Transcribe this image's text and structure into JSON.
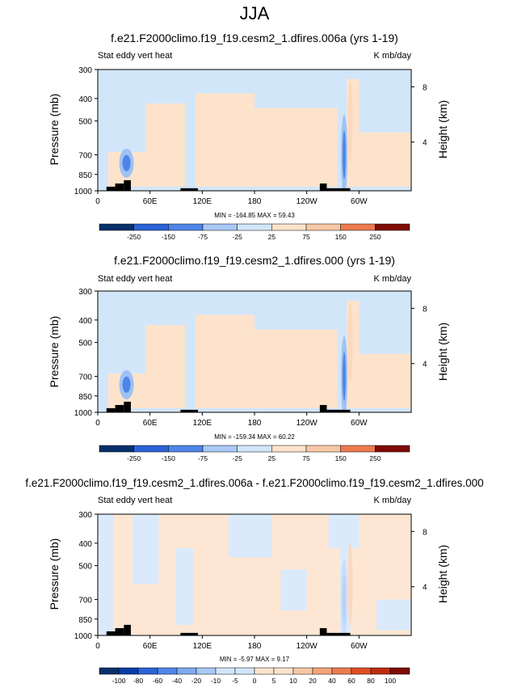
{
  "page_title": "JJA",
  "chart_data": [
    {
      "type": "heatmap",
      "title": "f.e21.F2000climo.f19_f19.cesm2_1.dfires.006a (yrs 1-19)",
      "left_label": "Stat eddy vert heat",
      "right_label": "K mb/day",
      "ylabel": "Pressure (mb)",
      "ylabel_right": "Height (km)",
      "y_ticks": [
        "300",
        "400",
        "500",
        "700",
        "850",
        "1000"
      ],
      "y_ticks_right": [
        "8",
        "4"
      ],
      "x_ticks": [
        "0",
        "60E",
        "120E",
        "180",
        "120W",
        "60W"
      ],
      "xlim": [
        0,
        360
      ],
      "ylim": [
        1000,
        300
      ],
      "y_scale": "log",
      "stats_text": "MIN = -164.85   MAX =  59.43",
      "colorbar_labels": [
        "-250",
        "-150",
        "-75",
        "-25",
        "25",
        "75",
        "150",
        "250"
      ],
      "features": [
        {
          "kind": "min",
          "lon": 33,
          "p": 760,
          "value": -164.85
        },
        {
          "kind": "min",
          "lon": 283,
          "p": 700,
          "value": -120
        },
        {
          "kind": "max",
          "lon": 290,
          "p": 500,
          "value": 59.43
        }
      ]
    },
    {
      "type": "heatmap",
      "title": "f.e21.F2000climo.f19_f19.cesm2_1.dfires.000 (yrs 1-19)",
      "left_label": "Stat eddy vert heat",
      "right_label": "K mb/day",
      "ylabel": "Pressure (mb)",
      "ylabel_right": "Height (km)",
      "y_ticks": [
        "300",
        "400",
        "500",
        "700",
        "850",
        "1000"
      ],
      "y_ticks_right": [
        "8",
        "4"
      ],
      "x_ticks": [
        "0",
        "60E",
        "120E",
        "180",
        "120W",
        "60W"
      ],
      "xlim": [
        0,
        360
      ],
      "ylim": [
        1000,
        300
      ],
      "y_scale": "log",
      "stats_text": "MIN = -159.34   MAX =  60.22",
      "colorbar_labels": [
        "-250",
        "-150",
        "-75",
        "-25",
        "25",
        "75",
        "150",
        "250"
      ],
      "features": [
        {
          "kind": "min",
          "lon": 33,
          "p": 760,
          "value": -159.34
        },
        {
          "kind": "min",
          "lon": 283,
          "p": 700,
          "value": -120
        },
        {
          "kind": "max",
          "lon": 290,
          "p": 500,
          "value": 60.22
        }
      ]
    },
    {
      "type": "heatmap",
      "title": "f.e21.F2000climo.f19_f19.cesm2_1.dfires.006a - f.e21.F2000climo.f19_f19.cesm2_1.dfires.000",
      "left_label": "Stat eddy vert heat",
      "right_label": "K mb/day",
      "ylabel": "Pressure (mb)",
      "ylabel_right": "Height (km)",
      "y_ticks": [
        "300",
        "400",
        "500",
        "700",
        "850",
        "1000"
      ],
      "y_ticks_right": [
        "8",
        "4"
      ],
      "x_ticks": [
        "0",
        "60E",
        "120E",
        "180",
        "120W",
        "60W"
      ],
      "xlim": [
        0,
        360
      ],
      "ylim": [
        1000,
        300
      ],
      "y_scale": "log",
      "stats_text": "MIN = -5.97   MAX =  9.17",
      "colorbar_labels": [
        "-100",
        "-80",
        "-60",
        "-40",
        "-20",
        "-10",
        "-5",
        "0",
        "5",
        "10",
        "20",
        "40",
        "60",
        "80",
        "100"
      ],
      "features": [
        {
          "kind": "min",
          "lon": 283,
          "p": 700,
          "value": -5.97
        },
        {
          "kind": "max",
          "lon": 290,
          "p": 600,
          "value": 9.17
        }
      ]
    }
  ],
  "colors": {
    "light_blue": "#d2e6fa",
    "light_orange": "#fde3cc",
    "positive_diff": "#fde7d4",
    "negative_diff": "#dbeafb",
    "topography": "#000000",
    "colorbar_ramp": [
      "#08306b",
      "#083ea8",
      "#2b63d6",
      "#4f85e8",
      "#7eaaf0",
      "#a9c8f6",
      "#d2e6fa",
      "#fde3cc",
      "#f8c8a6",
      "#f5a27a",
      "#ee7a4f",
      "#e04e25",
      "#bd2d10",
      "#7f0c05"
    ]
  }
}
